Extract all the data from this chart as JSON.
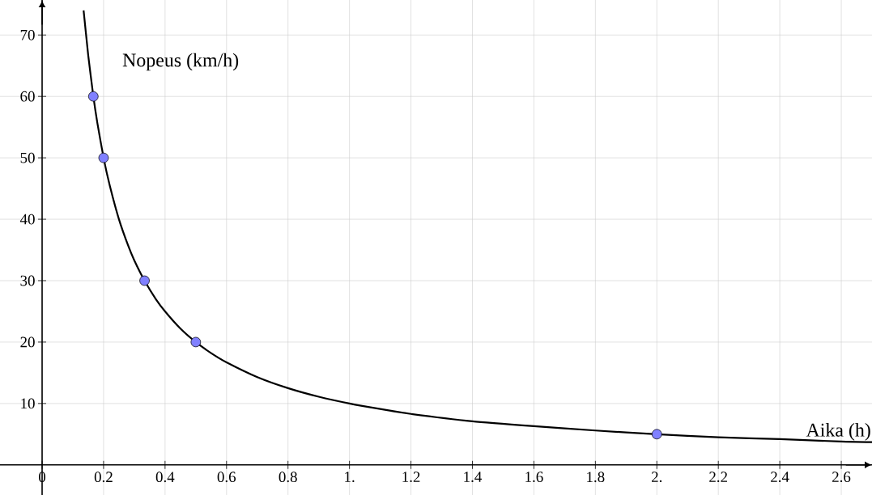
{
  "chart_data": {
    "type": "line",
    "xlabel": "Aika (h)",
    "ylabel": "Nopeus (km/h)",
    "xlim": [
      -0.137,
      2.7
    ],
    "ylim": [
      -4.9,
      75.7
    ],
    "xticks": [
      0,
      0.2,
      0.4,
      0.6,
      0.8,
      {
        "value": 1,
        "label": "1."
      },
      1.2,
      1.4,
      1.6,
      1.8,
      {
        "value": 2,
        "label": "2."
      },
      2.2,
      2.4,
      2.6
    ],
    "yticks": [
      10,
      20,
      30,
      40,
      50,
      60,
      70
    ],
    "grid": true,
    "series": [
      {
        "type": "line",
        "color": "#000000",
        "marker": "none",
        "x": [
          0.135,
          0.15,
          0.1667,
          0.18,
          0.2,
          0.22,
          0.25,
          0.28,
          0.3,
          0.3333,
          0.37,
          0.4,
          0.45,
          0.5,
          0.55,
          0.6,
          0.7,
          0.8,
          0.9,
          1.0,
          1.1,
          1.2,
          1.4,
          1.6,
          1.8,
          2.0,
          2.2,
          2.4,
          2.6,
          2.7
        ],
        "values": [
          74,
          66.7,
          60,
          55.6,
          50,
          45.5,
          40,
          35.7,
          33.3,
          30,
          27,
          25,
          22.2,
          20,
          18.2,
          16.7,
          14.3,
          12.5,
          11.1,
          10,
          9.1,
          8.3,
          7.1,
          6.3,
          5.6,
          5,
          4.5,
          4.2,
          3.8,
          3.7
        ]
      },
      {
        "type": "scatter",
        "color": "#8080ff",
        "marker": "circle",
        "x": [
          0.1667,
          0.2,
          0.3333,
          0.5,
          2.0
        ],
        "values": [
          60,
          50,
          30,
          20,
          5
        ]
      }
    ]
  }
}
